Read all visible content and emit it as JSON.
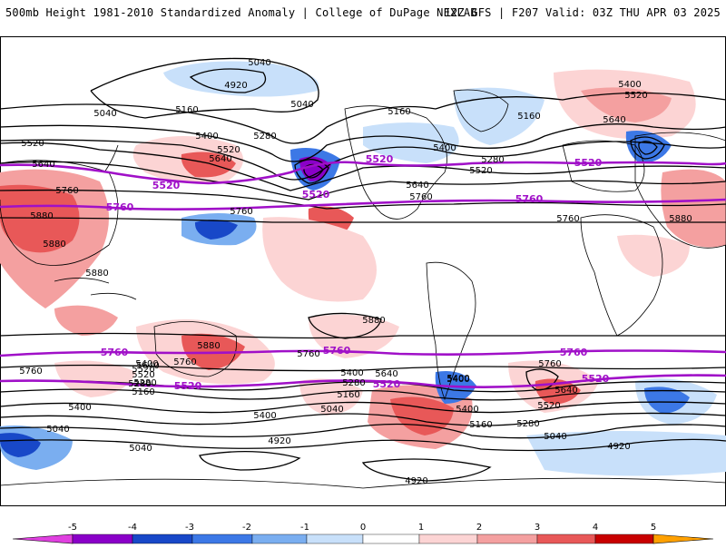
{
  "header": {
    "title_left": "500mb Height 1981-2010 Standardized Anomaly | College of DuPage NEXLAB",
    "title_right": "12Z GFS | F207 Valid: 03Z THU APR 03 2025"
  },
  "colors": {
    "negative": [
      "#e040e0",
      "#8a00c8",
      "#1848c8",
      "#3c78e6",
      "#7aaef0",
      "#c8e0fa"
    ],
    "positive": [
      "#fcd4d4",
      "#f4a0a0",
      "#e85858",
      "#c80000",
      "#ffa000",
      "#ffd040"
    ],
    "contour": "#000000",
    "highlight_contour": "#a010c8",
    "coast": "#000000"
  },
  "contour_labels": [
    "5040",
    "4920",
    "5040",
    "5160",
    "5040",
    "5160",
    "5160",
    "5400",
    "5520",
    "5280",
    "5520",
    "5640",
    "5400",
    "5760",
    "5640",
    "5880",
    "5880",
    "5760",
    "5880",
    "5760",
    "5760",
    "5640",
    "5520",
    "5400",
    "5280",
    "5280",
    "5400",
    "5520",
    "5640",
    "5160",
    "5040",
    "5880",
    "5880",
    "5880",
    "5760",
    "5640",
    "5520",
    "5400",
    "5400",
    "5160",
    "5040",
    "5040",
    "4920",
    "4920",
    "5280",
    "5400",
    "5640",
    "5760",
    "5760",
    "5760",
    "5640",
    "5520",
    "5400",
    "5280",
    "5160",
    "5040",
    "4920",
    "5400",
    "5520",
    "5400",
    "5280"
  ],
  "purple_labels": [
    "5520",
    "5520",
    "5760",
    "5760",
    "5520",
    "5520",
    "5760",
    "5760",
    "5760",
    "5520",
    "5520",
    "5520"
  ],
  "colorbar": {
    "ticks": [
      "-5",
      "-4",
      "-3",
      "-2",
      "-1",
      "0",
      "1",
      "2",
      "3",
      "4",
      "5"
    ]
  }
}
